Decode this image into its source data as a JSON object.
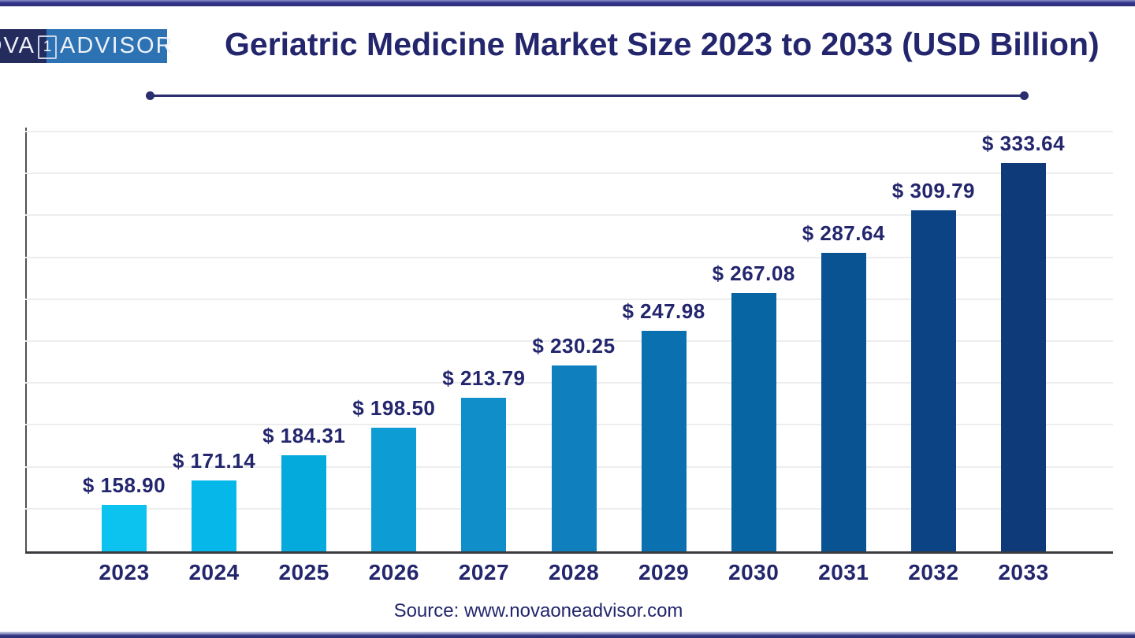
{
  "logo": {
    "name_part1": "NOVA",
    "badge": "1",
    "name_part2": "ADVISOR",
    "colors": {
      "left_bg": "#242b5d",
      "right_bg": "#2d73b4",
      "text": "#edf1f9"
    }
  },
  "header": {
    "title": "Geriatric Medicine Market Size 2023 to 2033 (USD Billion)",
    "title_color": "#23266d",
    "underline_color": "#2a2d6e"
  },
  "chart_data": {
    "type": "bar",
    "title": "Geriatric Medicine Market Size 2023 to 2033 (USD Billion)",
    "unit": "USD Billion",
    "categories": [
      "2023",
      "2024",
      "2025",
      "2026",
      "2027",
      "2028",
      "2029",
      "2030",
      "2031",
      "2032",
      "2033"
    ],
    "values": [
      158.9,
      171.14,
      184.31,
      198.5,
      213.79,
      230.25,
      247.98,
      267.08,
      287.64,
      309.79,
      333.64
    ],
    "value_labels": [
      "$ 158.90",
      "$ 171.14",
      "$ 184.31",
      "$ 198.50",
      "$ 213.79",
      "$ 230.25",
      "$ 247.98",
      "$ 267.08",
      "$ 287.64",
      "$ 309.79",
      "$ 333.64"
    ],
    "bar_colors": [
      "#0cc3f0",
      "#06b7ea",
      "#05aadd",
      "#0d9dd4",
      "#0f8ec9",
      "#0f80bd",
      "#0a70af",
      "#0765a3",
      "#0a5393",
      "#0b4385",
      "#0e3a79"
    ],
    "xlabel": "",
    "ylabel": "",
    "y_axis_labels_visible": false,
    "ylim_estimate": [
      135,
      355
    ],
    "grid": true,
    "gridline_color": "#ededed",
    "axis_color": "#3b3b3f",
    "label_color": "#23266d",
    "tick_color": "#23266d",
    "legend": false
  },
  "footer": {
    "source": "Source: www.novaoneadvisor.com"
  }
}
